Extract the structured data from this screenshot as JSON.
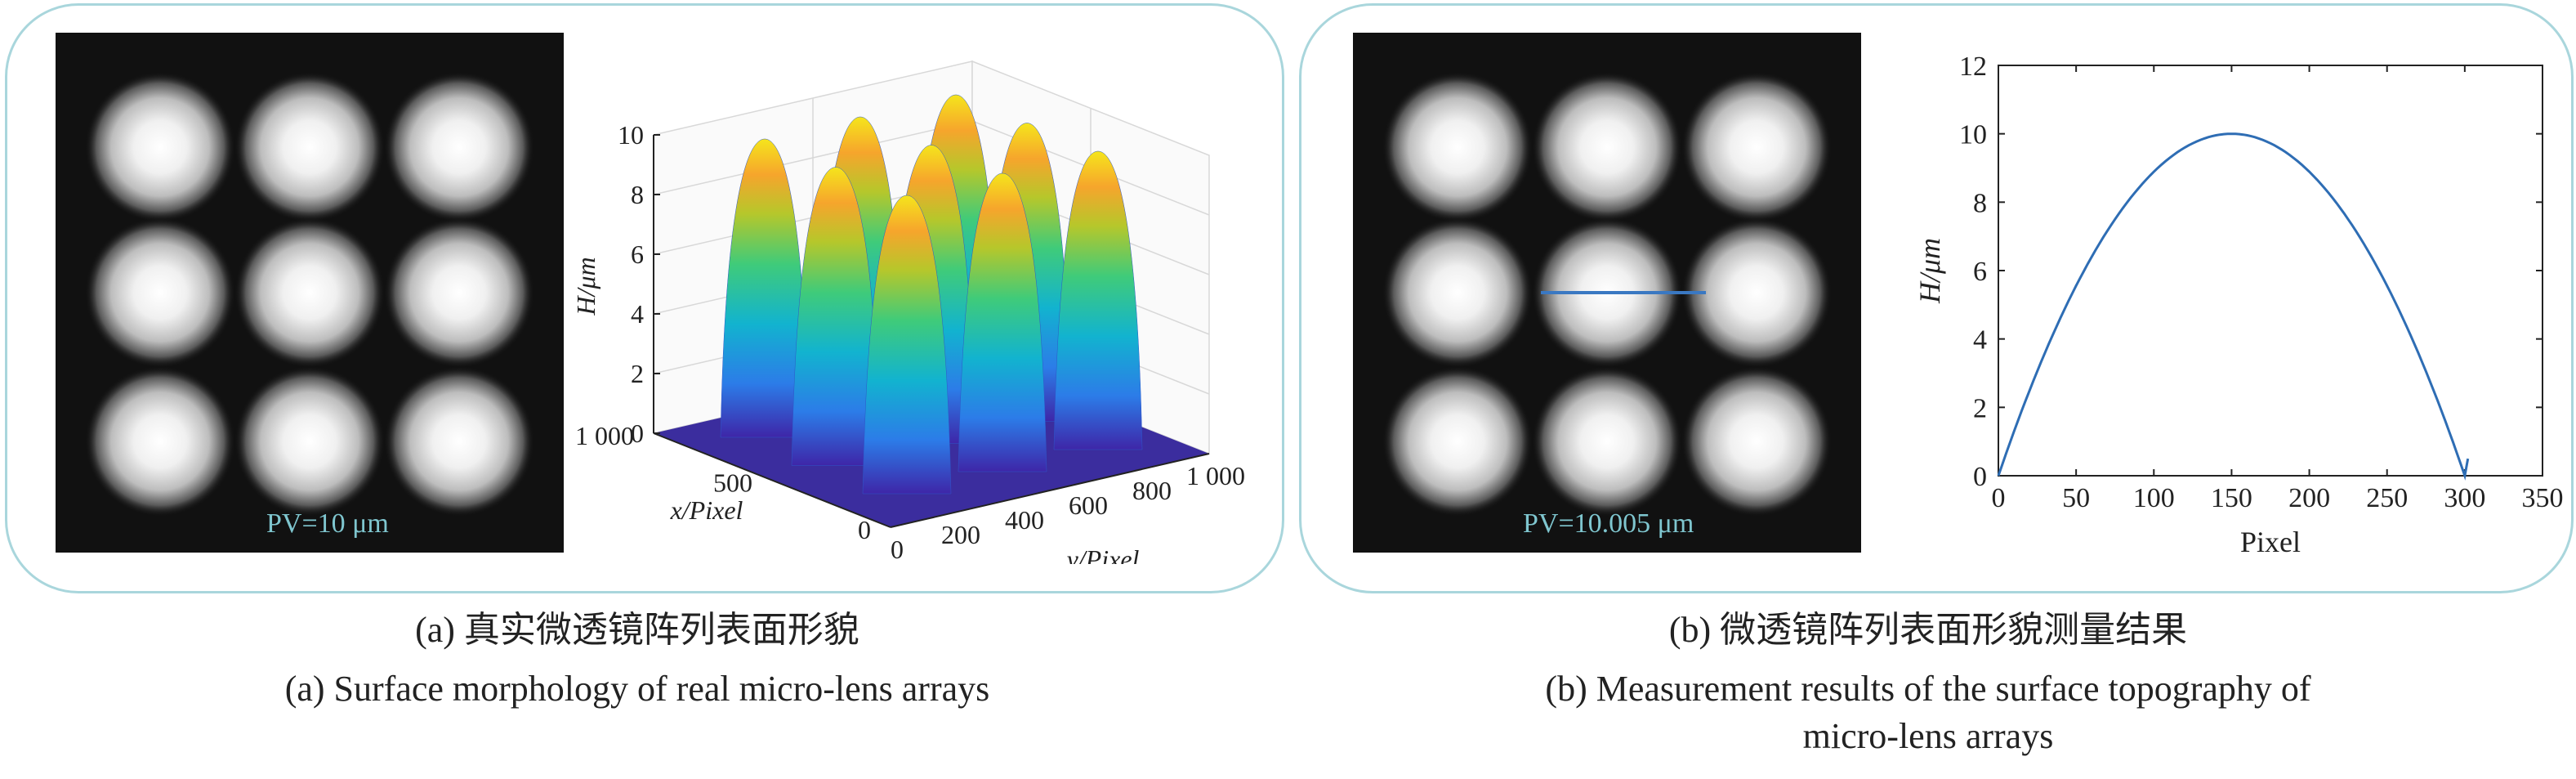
{
  "panels": {
    "a": {
      "pv_label": "PV=10 μm",
      "caption_cn": "(a) 真实微透镜阵列表面形貌",
      "caption_en": "(a)  Surface morphology of real micro-lens arrays"
    },
    "b": {
      "pv_label": "PV=10.005 μm",
      "caption_cn": "(b) 微透镜阵列表面形貌测量结果",
      "caption_en_line1": "(b)  Measurement results of the surface topography of",
      "caption_en_line2": "micro-lens arrays"
    }
  },
  "colors": {
    "panel_border": "#a9d6dc",
    "image_background": "#111111",
    "pv_text": "#7fc6cf",
    "profile_line": "#2e6db4",
    "measurement_line": "#3a78c2"
  },
  "chart_data": [
    {
      "type": "surface",
      "panel": "a",
      "title": "",
      "zlabel": "H/μm",
      "xlabel": "x/Pixel",
      "ylabel": "y/Pixel",
      "zlim": [
        0,
        10
      ],
      "z_ticks": [
        "0",
        "2",
        "4",
        "6",
        "8",
        "10"
      ],
      "x_ticks": [
        "0",
        "500",
        "1 000"
      ],
      "y_ticks": [
        "0",
        "200",
        "400",
        "600",
        "800",
        "1 000"
      ],
      "lens_grid": [
        3,
        3
      ],
      "lens_peak_height": 10,
      "colormap": "parula",
      "grid": true
    },
    {
      "type": "line",
      "panel": "b",
      "title": "",
      "xlabel": "Pixel",
      "ylabel": "H/μm",
      "xlim": [
        0,
        350
      ],
      "ylim": [
        0,
        12
      ],
      "x_ticks": [
        "0",
        "50",
        "100",
        "150",
        "200",
        "250",
        "300",
        "350"
      ],
      "y_ticks": [
        "0",
        "2",
        "4",
        "6",
        "8",
        "10",
        "12"
      ],
      "series": [
        {
          "x": [
            0,
            25,
            50,
            75,
            100,
            125,
            150,
            175,
            200,
            225,
            250,
            275,
            300,
            302
          ],
          "y": [
            0,
            3.1,
            5.6,
            7.6,
            9.0,
            9.76,
            10.0,
            9.76,
            9.0,
            7.6,
            5.6,
            3.1,
            0,
            0.5
          ]
        }
      ],
      "grid": false
    }
  ]
}
